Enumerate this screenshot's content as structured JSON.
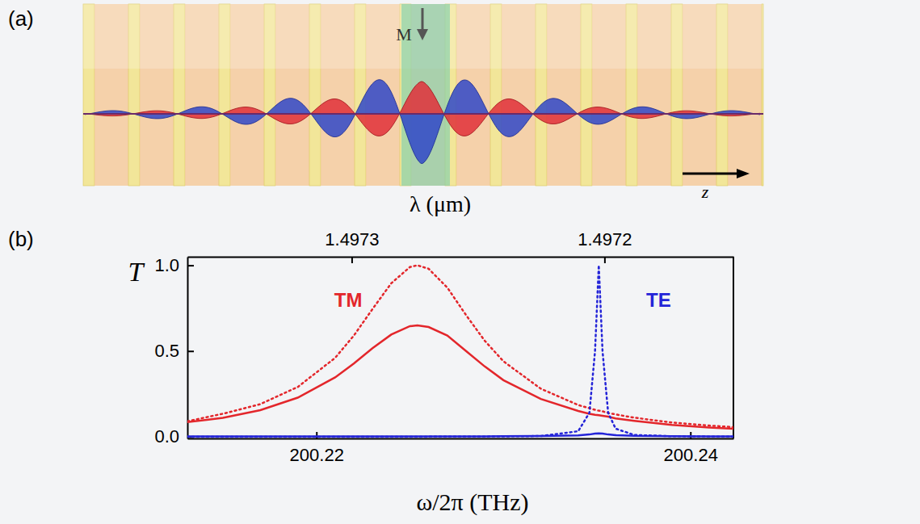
{
  "illustration": {
    "panel_label": "(a)",
    "magnetization": "M",
    "axis": "z"
  },
  "chart_data": {
    "type": "line",
    "panel_label": "(b)",
    "xlabel": "ω/2π (THz)",
    "ylabel": "T",
    "x2label": "λ (μm)",
    "xlim": [
      200.2131,
      200.2423
    ],
    "xticks": [
      200.22,
      200.24
    ],
    "x2lim": [
      1.497365,
      1.497149
    ],
    "x2ticks": [
      1.4973,
      1.4972
    ],
    "ylim": [
      -0.01,
      1.05
    ],
    "yticks": [
      {
        "value": 0,
        "label": "0.0"
      },
      {
        "value": 0.5,
        "label": "0.5"
      },
      {
        "value": 1,
        "label": "1.0"
      }
    ],
    "x": [
      200.2131,
      200.215,
      200.217,
      200.219,
      200.221,
      200.222,
      200.223,
      200.224,
      200.225,
      200.2254,
      200.226,
      200.227,
      200.228,
      200.229,
      200.23,
      200.232,
      200.234,
      200.2346,
      200.2349,
      200.2351,
      200.2353,
      200.2356,
      200.236,
      200.237,
      200.239,
      200.241,
      200.2423
    ],
    "series": [
      {
        "color": "#e3262b",
        "line_style": "dotted",
        "values": [
          0.09,
          0.134,
          0.19,
          0.29,
          0.46,
          0.59,
          0.745,
          0.895,
          0.99,
          1.0,
          0.98,
          0.87,
          0.71,
          0.56,
          0.44,
          0.28,
          0.185,
          0.166,
          0.157,
          0.152,
          0.148,
          0.139,
          0.13,
          0.111,
          0.083,
          0.065,
          0.056
        ]
      },
      {
        "color": "#e3262b",
        "line_style": "solid",
        "values": [
          0.085,
          0.11,
          0.155,
          0.228,
          0.346,
          0.427,
          0.516,
          0.596,
          0.645,
          0.65,
          0.64,
          0.59,
          0.5,
          0.41,
          0.33,
          0.22,
          0.15,
          0.134,
          0.128,
          0.125,
          0.122,
          0.117,
          0.107,
          0.093,
          0.069,
          0.054,
          0.047
        ]
      },
      {
        "color": "#2424d8",
        "line_style": "dotted",
        "values": [
          0.0,
          0.0,
          0.0,
          0.0,
          0.0,
          0.0,
          0.0,
          0.0,
          0.0,
          0.0,
          0.0,
          0.001,
          0.001,
          0.001,
          0.002,
          0.004,
          0.032,
          0.14,
          0.5,
          1.0,
          0.5,
          0.14,
          0.047,
          0.01,
          0.003,
          0.001,
          0.001
        ]
      },
      {
        "color": "#2424d8",
        "line_style": "solid",
        "values": [
          0.002,
          0.002,
          0.002,
          0.002,
          0.002,
          0.002,
          0.002,
          0.002,
          0.002,
          0.002,
          0.002,
          0.002,
          0.002,
          0.002,
          0.003,
          0.004,
          0.008,
          0.013,
          0.018,
          0.02,
          0.018,
          0.013,
          0.009,
          0.005,
          0.003,
          0.002,
          0.002
        ]
      }
    ],
    "annotations": [
      {
        "text": "TM",
        "x": 200.2217,
        "y": 0.8,
        "color": "#e3262b"
      },
      {
        "text": "TE",
        "x": 200.2383,
        "y": 0.8,
        "color": "#2424d8"
      }
    ]
  }
}
